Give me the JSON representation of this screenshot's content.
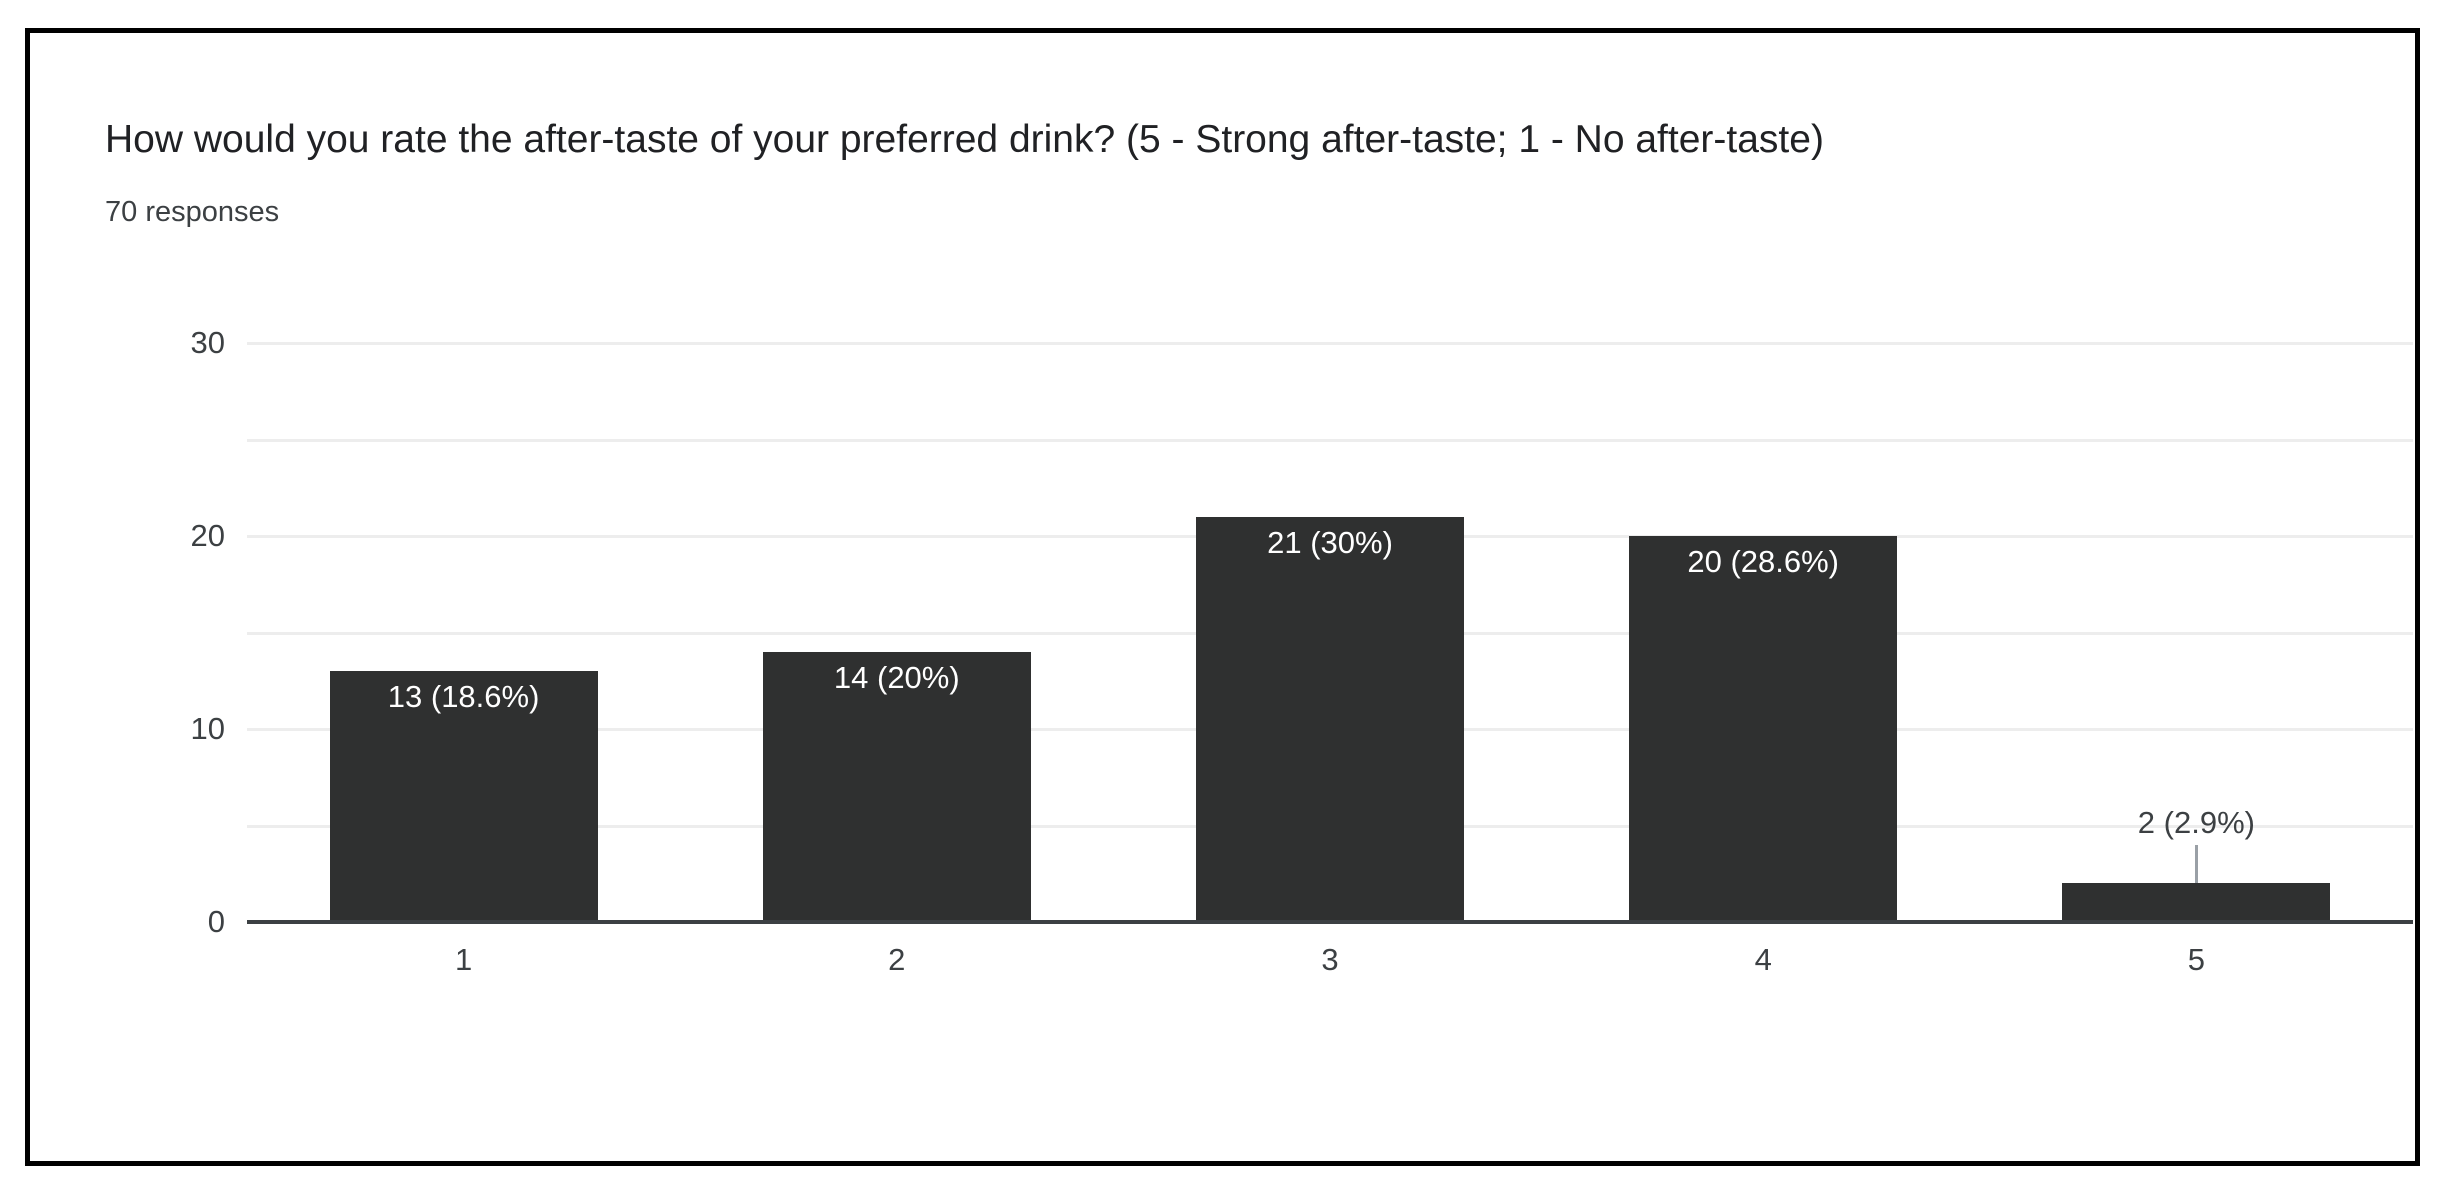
{
  "header": {
    "title": "How would you rate the after-taste of your preferred drink? (5 - Strong after-taste; 1 - No after-taste)",
    "responses": "70 responses"
  },
  "chart_data": {
    "type": "bar",
    "title": "How would you rate the after-taste of your preferred drink? (5 - Strong after-taste; 1 - No after-taste)",
    "subtitle": "70 responses",
    "categories": [
      "1",
      "2",
      "3",
      "4",
      "5"
    ],
    "values": [
      13,
      14,
      21,
      20,
      2
    ],
    "bar_labels": [
      "13 (18.6%)",
      "14 (20%)",
      "21 (30%)",
      "20 (28.6%)",
      "2 (2.9%)"
    ],
    "xlabel": "",
    "ylabel": "",
    "ylim": [
      0,
      30
    ],
    "yticks": [
      0,
      10,
      20,
      30
    ],
    "grid_step": 5,
    "grid": "horizontal only",
    "legend_position": "none",
    "colors": {
      "bar": "#2f3030",
      "axis_line": "#3c4043",
      "gridline": "#ededed",
      "label_inside": "#ffffff",
      "label_outside": "#3c4043",
      "leader_line": "#9aa0a6",
      "tick_label": "#3c4043",
      "title_text": "#202124",
      "subtitle_text": "#3c4043",
      "frame_border": "#000000",
      "background": "#ffffff"
    }
  }
}
